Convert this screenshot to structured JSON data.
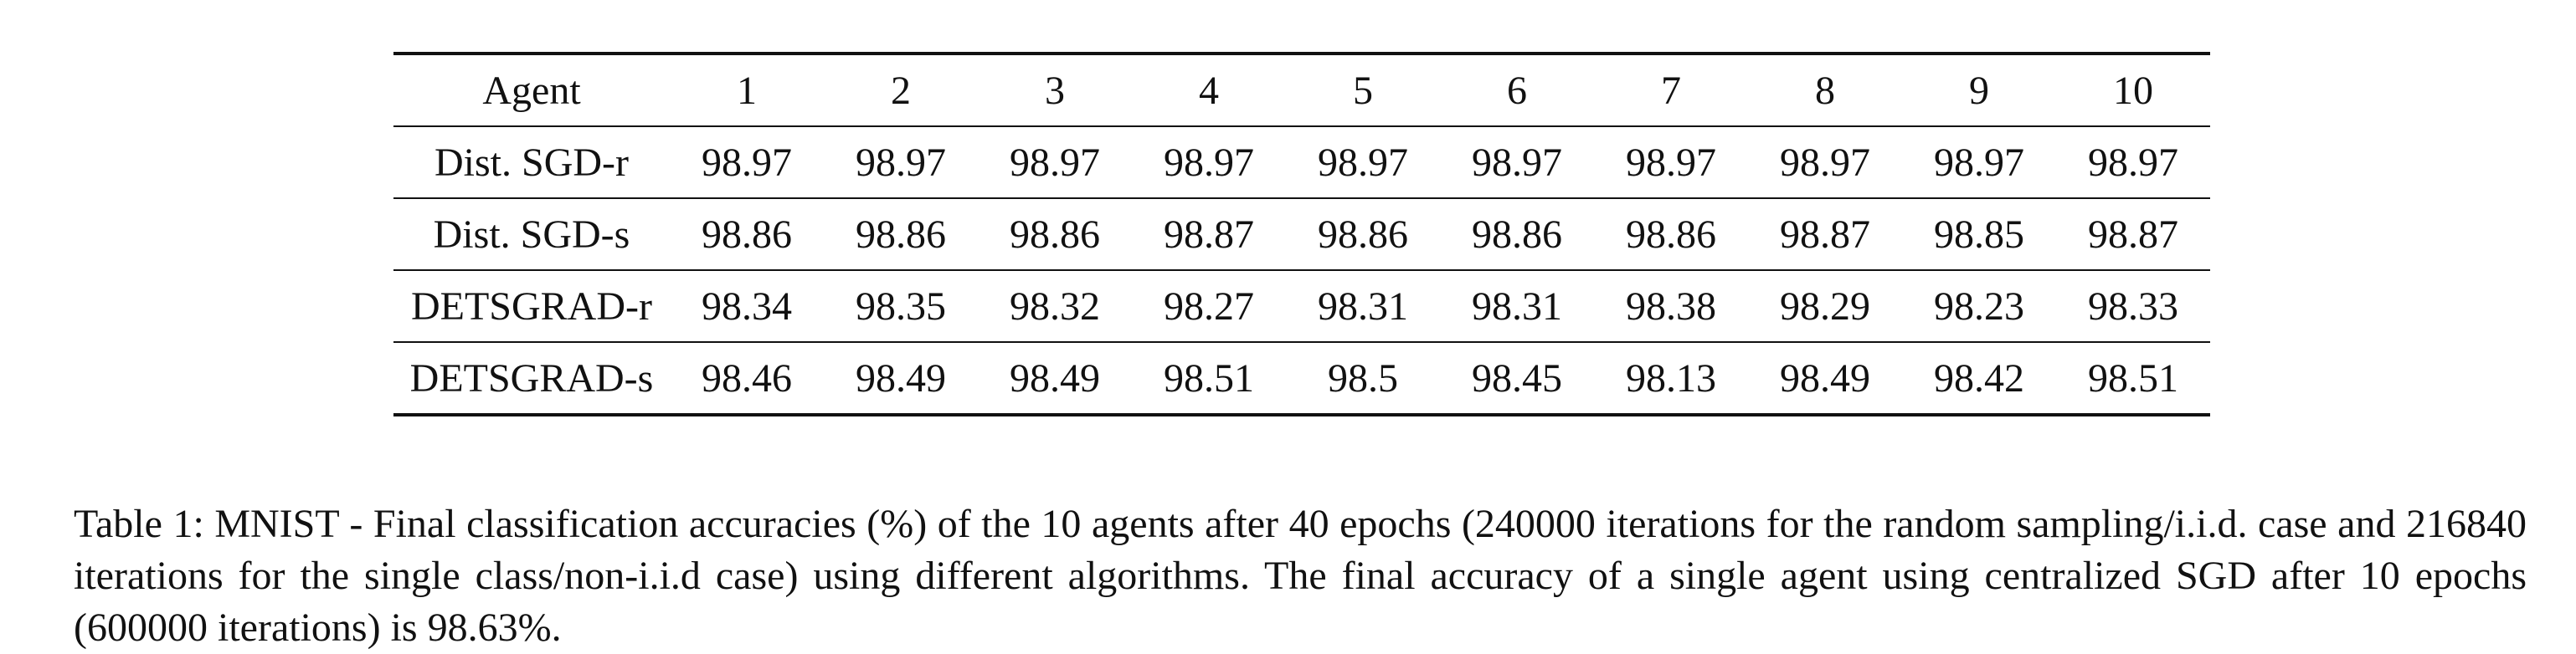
{
  "table": {
    "columns": [
      "Agent",
      "1",
      "2",
      "3",
      "4",
      "5",
      "6",
      "7",
      "8",
      "9",
      "10"
    ],
    "rows": [
      {
        "agent": "Dist. SGD-r",
        "values": [
          "98.97",
          "98.97",
          "98.97",
          "98.97",
          "98.97",
          "98.97",
          "98.97",
          "98.97",
          "98.97",
          "98.97"
        ]
      },
      {
        "agent": "Dist. SGD-s",
        "values": [
          "98.86",
          "98.86",
          "98.86",
          "98.87",
          "98.86",
          "98.86",
          "98.86",
          "98.87",
          "98.85",
          "98.87"
        ]
      },
      {
        "agent": "DETSGRAD-r",
        "values": [
          "98.34",
          "98.35",
          "98.32",
          "98.27",
          "98.31",
          "98.31",
          "98.38",
          "98.29",
          "98.23",
          "98.33"
        ]
      },
      {
        "agent": "DETSGRAD-s",
        "values": [
          "98.46",
          "98.49",
          "98.49",
          "98.51",
          "98.5",
          "98.45",
          "98.13",
          "98.49",
          "98.42",
          "98.51"
        ]
      }
    ]
  },
  "caption": "Table 1: MNIST - Final classification accuracies (%) of the 10 agents after 40 epochs (240000 iterations for the random sampling/i.i.d. case and 216840 iterations for the single class/non-i.i.d case) using different algorithms. The final accuracy of a single agent using centralized SGD after 10 epochs (600000 iterations) is 98.63%."
}
